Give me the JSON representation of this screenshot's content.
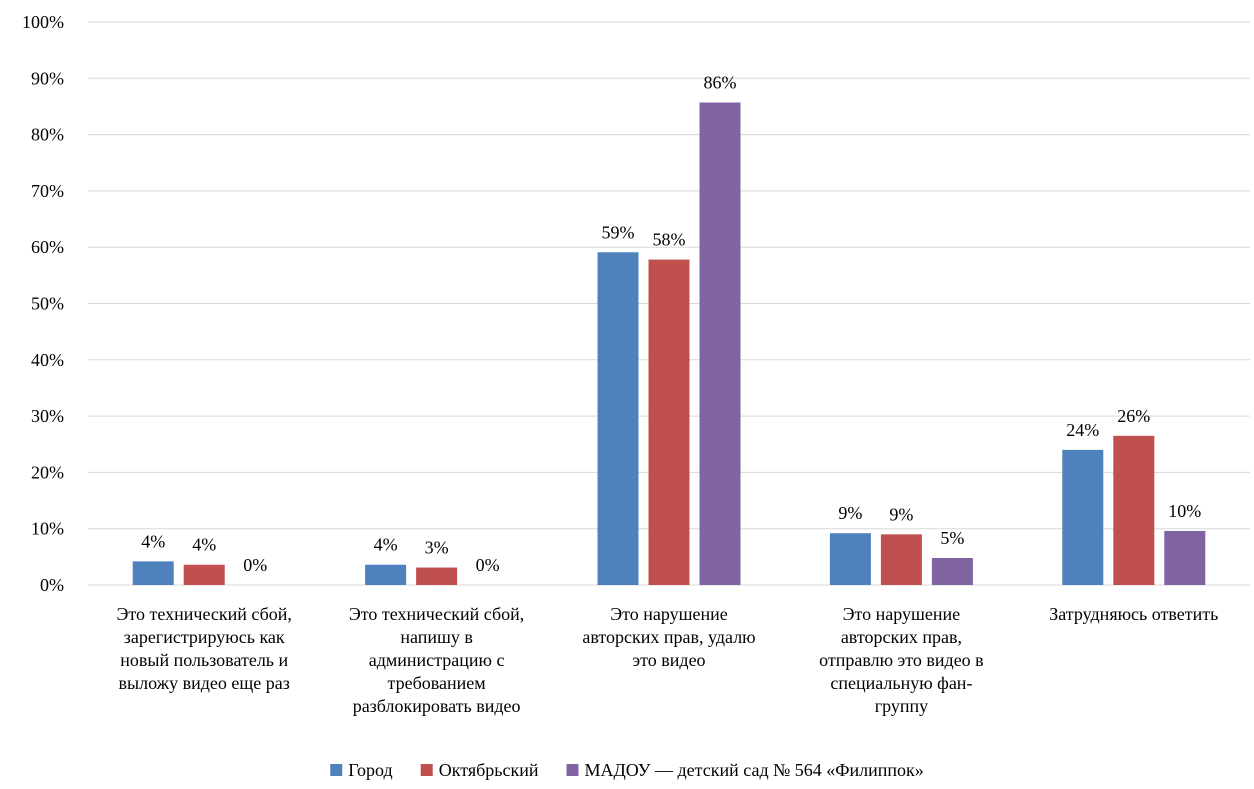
{
  "chart_data": {
    "type": "bar",
    "title": "",
    "xlabel": "",
    "ylabel": "",
    "ylim": [
      0,
      100
    ],
    "y_ticks": [
      "0%",
      "10%",
      "20%",
      "30%",
      "40%",
      "50%",
      "60%",
      "70%",
      "80%",
      "90%",
      "100%"
    ],
    "grid": true,
    "legend_position": "bottom",
    "categories": [
      [
        "Это технический сбой,",
        "зарегистрируюсь как",
        "новый пользователь и",
        "выложу видео еще раз"
      ],
      [
        "Это технический сбой,",
        "напишу в",
        "администрацию с",
        "требованием",
        "разблокировать видео"
      ],
      [
        "Это нарушение",
        "авторских прав, удалю",
        "это видео"
      ],
      [
        "Это нарушение",
        "авторских прав,",
        "отправлю это видео в",
        "специальную фан-",
        "группу"
      ],
      [
        "Затрудняюсь ответить"
      ]
    ],
    "series": [
      {
        "name": "Город",
        "color": "#4F81BD",
        "values": [
          4.2,
          3.6,
          59.1,
          9.2,
          24.0
        ],
        "labels": [
          "4%",
          "4%",
          "59%",
          "9%",
          "24%"
        ]
      },
      {
        "name": "Октябрьский",
        "color": "#C0504D",
        "values": [
          3.6,
          3.1,
          57.8,
          9.0,
          26.5
        ],
        "labels": [
          "4%",
          "3%",
          "58%",
          "9%",
          "26%"
        ]
      },
      {
        "name": "МАДОУ — детский  сад № 564 «Филиппок»",
        "color": "#8064A2",
        "values": [
          0,
          0,
          85.7,
          4.8,
          9.6
        ],
        "labels": [
          "0%",
          "0%",
          "86%",
          "5%",
          "10%"
        ]
      }
    ]
  }
}
